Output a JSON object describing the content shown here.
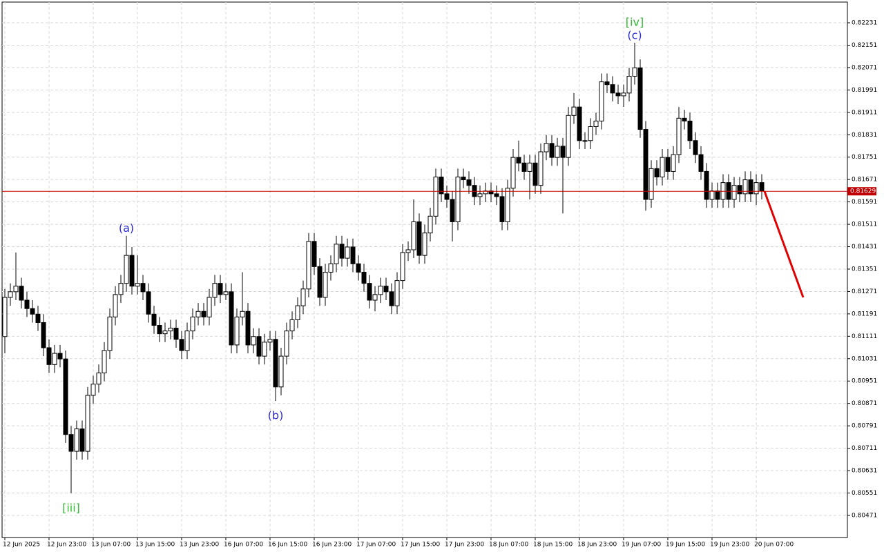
{
  "chart_data": {
    "type": "candlestick",
    "open": [
      0.8111,
      0.8125,
      0.8127,
      0.8129,
      0.8124,
      0.8121,
      0.8119,
      0.8116,
      0.8107,
      0.8101,
      0.8105,
      0.8103,
      0.8076,
      0.807,
      0.8078,
      0.807,
      0.809,
      0.8094,
      0.8098,
      0.8106,
      0.8118,
      0.8126,
      0.813,
      0.814,
      0.8129,
      0.813,
      0.8127,
      0.8119,
      0.8115,
      0.8112,
      0.8113,
      0.8114,
      0.811,
      0.8106,
      0.8113,
      0.8118,
      0.812,
      0.8118,
      0.8125,
      0.813,
      0.8126,
      0.8127,
      0.8108,
      0.8118,
      0.812,
      0.8108,
      0.8111,
      0.8104,
      0.8109,
      0.811,
      0.8093,
      0.8104,
      0.8113,
      0.8117,
      0.8122,
      0.8128,
      0.8145,
      0.8136,
      0.8125,
      0.8134,
      0.8137,
      0.8144,
      0.8139,
      0.8143,
      0.8137,
      0.8134,
      0.813,
      0.8124,
      0.8126,
      0.8129,
      0.8127,
      0.8122,
      0.8131,
      0.8141,
      0.8142,
      0.8152,
      0.814,
      0.8148,
      0.8154,
      0.8168,
      0.8162,
      0.816,
      0.8152,
      0.8168,
      0.8167,
      0.8165,
      0.8161,
      0.8162,
      0.8163,
      0.8162,
      0.8161,
      0.8152,
      0.8164,
      0.8175,
      0.8173,
      0.817,
      0.8173,
      0.8165,
      0.8177,
      0.818,
      0.8175,
      0.8179,
      0.8175,
      0.819,
      0.8193,
      0.8181,
      0.8181,
      0.8186,
      0.8188,
      0.8202,
      0.8201,
      0.8198,
      0.8197,
      0.8198,
      0.8204,
      0.8207,
      0.8185,
      0.816,
      0.8171,
      0.8168,
      0.8175,
      0.817,
      0.8176,
      0.8189,
      0.8188,
      0.8181,
      0.8176,
      0.817,
      0.816,
      0.8163,
      0.816,
      0.8166,
      0.816,
      0.8165,
      0.8162,
      0.8167,
      0.8162,
      0.8166
    ],
    "high": [
      0.8128,
      0.813,
      0.8141,
      0.8132,
      0.8127,
      0.8124,
      0.8122,
      0.8119,
      0.811,
      0.8108,
      0.8108,
      0.8106,
      0.8079,
      0.8081,
      0.8081,
      0.8093,
      0.8097,
      0.8101,
      0.8109,
      0.8121,
      0.8129,
      0.8133,
      0.8147,
      0.8143,
      0.814,
      0.8133,
      0.813,
      0.8122,
      0.8118,
      0.8116,
      0.8117,
      0.8117,
      0.8113,
      0.8116,
      0.8121,
      0.8123,
      0.8123,
      0.8128,
      0.8133,
      0.8133,
      0.813,
      0.813,
      0.8121,
      0.8134,
      0.8123,
      0.8114,
      0.8114,
      0.8112,
      0.8113,
      0.8113,
      0.8107,
      0.8116,
      0.812,
      0.8125,
      0.8131,
      0.8148,
      0.8148,
      0.8139,
      0.8137,
      0.814,
      0.8147,
      0.8147,
      0.8146,
      0.8146,
      0.814,
      0.8137,
      0.8133,
      0.8129,
      0.8132,
      0.8132,
      0.813,
      0.8134,
      0.8144,
      0.8145,
      0.816,
      0.8155,
      0.8151,
      0.8157,
      0.8171,
      0.8171,
      0.8165,
      0.8163,
      0.8171,
      0.8171,
      0.817,
      0.8168,
      0.8165,
      0.8166,
      0.8166,
      0.8165,
      0.8164,
      0.8167,
      0.8178,
      0.8181,
      0.8176,
      0.8176,
      0.8176,
      0.818,
      0.8183,
      0.8183,
      0.8182,
      0.8182,
      0.8193,
      0.8198,
      0.8196,
      0.8184,
      0.8189,
      0.8191,
      0.8205,
      0.8205,
      0.8204,
      0.8201,
      0.8201,
      0.8207,
      0.8216,
      0.821,
      0.8188,
      0.8174,
      0.8174,
      0.8178,
      0.8178,
      0.8179,
      0.8193,
      0.8192,
      0.8191,
      0.8184,
      0.8179,
      0.8173,
      0.8166,
      0.8166,
      0.8169,
      0.8169,
      0.8168,
      0.8168,
      0.817,
      0.817,
      0.8169,
      0.8169
    ],
    "low": [
      0.8105,
      0.8122,
      0.8124,
      0.8121,
      0.8118,
      0.8116,
      0.8113,
      0.8104,
      0.8098,
      0.8098,
      0.81,
      0.8073,
      0.8055,
      0.8067,
      0.8067,
      0.8067,
      0.8087,
      0.8091,
      0.8095,
      0.8103,
      0.8115,
      0.8123,
      0.8127,
      0.8126,
      0.8126,
      0.8124,
      0.8116,
      0.8112,
      0.8109,
      0.8109,
      0.811,
      0.8107,
      0.8103,
      0.8103,
      0.811,
      0.8115,
      0.8115,
      0.8115,
      0.8122,
      0.8123,
      0.8124,
      0.8105,
      0.8105,
      0.8115,
      0.8105,
      0.8105,
      0.8101,
      0.8101,
      0.8106,
      0.8088,
      0.809,
      0.8101,
      0.811,
      0.8114,
      0.8119,
      0.8125,
      0.8133,
      0.8122,
      0.8122,
      0.8131,
      0.8134,
      0.8136,
      0.8136,
      0.8134,
      0.8131,
      0.8127,
      0.8121,
      0.812,
      0.8123,
      0.8124,
      0.8119,
      0.8119,
      0.8128,
      0.8138,
      0.8139,
      0.8137,
      0.8137,
      0.8145,
      0.8151,
      0.8159,
      0.8157,
      0.8145,
      0.8149,
      0.8164,
      0.8162,
      0.8158,
      0.8158,
      0.8159,
      0.8159,
      0.8158,
      0.8149,
      0.8149,
      0.8161,
      0.817,
      0.8167,
      0.816,
      0.8162,
      0.8162,
      0.8174,
      0.8172,
      0.8172,
      0.8155,
      0.8172,
      0.8187,
      0.8178,
      0.8178,
      0.8178,
      0.8183,
      0.8185,
      0.8198,
      0.8195,
      0.8194,
      0.8193,
      0.8195,
      0.8201,
      0.8182,
      0.8156,
      0.8157,
      0.8165,
      0.8165,
      0.8167,
      0.8167,
      0.8173,
      0.8185,
      0.8178,
      0.8173,
      0.8167,
      0.8157,
      0.8157,
      0.8157,
      0.8157,
      0.8157,
      0.8157,
      0.8159,
      0.8159,
      0.8159,
      0.8158,
      0.816
    ],
    "close": [
      0.8125,
      0.8127,
      0.8129,
      0.8124,
      0.8121,
      0.8119,
      0.8116,
      0.8107,
      0.8101,
      0.8105,
      0.8103,
      0.8076,
      0.807,
      0.8078,
      0.807,
      0.809,
      0.8094,
      0.8098,
      0.8106,
      0.8118,
      0.8126,
      0.813,
      0.814,
      0.8129,
      0.813,
      0.8127,
      0.8119,
      0.8115,
      0.8112,
      0.8113,
      0.8114,
      0.811,
      0.8106,
      0.8113,
      0.8118,
      0.812,
      0.8118,
      0.8125,
      0.813,
      0.8126,
      0.8127,
      0.8108,
      0.8118,
      0.812,
      0.8108,
      0.8111,
      0.8104,
      0.8109,
      0.811,
      0.8093,
      0.8104,
      0.8113,
      0.8117,
      0.8122,
      0.8128,
      0.8145,
      0.8136,
      0.8125,
      0.8134,
      0.8137,
      0.8144,
      0.8139,
      0.8143,
      0.8137,
      0.8134,
      0.813,
      0.8124,
      0.8126,
      0.8129,
      0.8127,
      0.8122,
      0.8131,
      0.8141,
      0.8142,
      0.8152,
      0.814,
      0.8148,
      0.8154,
      0.8168,
      0.8162,
      0.816,
      0.8152,
      0.8168,
      0.8167,
      0.8165,
      0.8161,
      0.8162,
      0.8163,
      0.8162,
      0.8161,
      0.8152,
      0.8164,
      0.8175,
      0.8173,
      0.817,
      0.8173,
      0.8165,
      0.8177,
      0.818,
      0.8175,
      0.8179,
      0.8175,
      0.819,
      0.8193,
      0.8181,
      0.8181,
      0.8186,
      0.8188,
      0.8202,
      0.8201,
      0.8198,
      0.8197,
      0.8198,
      0.8204,
      0.8207,
      0.8185,
      0.816,
      0.8171,
      0.8168,
      0.8175,
      0.817,
      0.8176,
      0.8189,
      0.8188,
      0.8181,
      0.8176,
      0.817,
      0.816,
      0.8163,
      0.816,
      0.8166,
      0.816,
      0.8165,
      0.8162,
      0.8167,
      0.8162,
      0.8166,
      0.8163
    ],
    "xlim": [
      -0.5,
      152.5
    ],
    "xticks": [
      {
        "value": 0,
        "label": "12 Jun 2025"
      },
      {
        "value": 8,
        "label": "12 Jun 23:00"
      },
      {
        "value": 16,
        "label": "13 Jun 07:00"
      },
      {
        "value": 24,
        "label": "13 Jun 15:00"
      },
      {
        "value": 32,
        "label": "13 Jun 23:00"
      },
      {
        "value": 40,
        "label": "16 Jun 07:00"
      },
      {
        "value": 48,
        "label": "16 Jun 15:00"
      },
      {
        "value": 56,
        "label": "16 Jun 23:00"
      },
      {
        "value": 64,
        "label": "17 Jun 07:00"
      },
      {
        "value": 72,
        "label": "17 Jun 15:00"
      },
      {
        "value": 80,
        "label": "17 Jun 23:00"
      },
      {
        "value": 88,
        "label": "18 Jun 07:00"
      },
      {
        "value": 96,
        "label": "18 Jun 15:00"
      },
      {
        "value": 104,
        "label": "18 Jun 23:00"
      },
      {
        "value": 112,
        "label": "19 Jun 07:00"
      },
      {
        "value": 120,
        "label": "19 Jun 15:00"
      },
      {
        "value": 128,
        "label": "19 Jun 23:00"
      },
      {
        "value": 136,
        "label": "20 Jun 07:00"
      }
    ],
    "ylim": [
      0.80392,
      0.82305
    ],
    "yticks": [
      0.82231,
      0.82151,
      0.82071,
      0.81991,
      0.81911,
      0.81831,
      0.81751,
      0.81671,
      0.81591,
      0.81511,
      0.81431,
      0.81351,
      0.81271,
      0.81191,
      0.81111,
      0.81031,
      0.80951,
      0.80871,
      0.80791,
      0.80711,
      0.80631,
      0.80551,
      0.80471
    ],
    "grid": true,
    "last_price": {
      "value": 0.81629,
      "color": "#c00000"
    },
    "forecast": {
      "x": [
        137.5,
        144.5
      ],
      "values": [
        0.81629,
        0.8125
      ],
      "color": "#e00000"
    },
    "annotations": [
      {
        "text": "[iii]",
        "x": 12,
        "position": "below",
        "color": "#33bb33"
      },
      {
        "text": "(a)",
        "x": 22,
        "position": "above",
        "color": "#2a2ad0"
      },
      {
        "text": "(b)",
        "x": 49,
        "position": "below",
        "color": "#2a2ad0"
      },
      {
        "text": "(c)",
        "x": 114,
        "position": "above",
        "color": "#2a2ad0"
      },
      {
        "text": "[iv]",
        "x": 114,
        "position": "above2",
        "color": "#33bb33"
      }
    ]
  }
}
